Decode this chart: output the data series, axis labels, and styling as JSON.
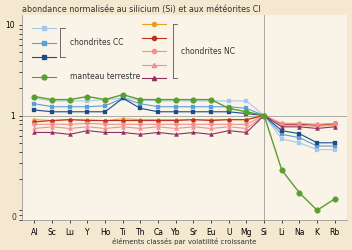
{
  "elements": [
    "Al",
    "Sc",
    "Lu",
    "Y",
    "Ho",
    "Ti",
    "Th",
    "Ca",
    "Yb",
    "Sr",
    "Eu",
    "U",
    "Mg",
    "Si",
    "Li",
    "Na",
    "K",
    "Rb"
  ],
  "background_color": "#f5e8d0",
  "plot_bg_color": "#faf3e8",
  "vertical_line_idx": 13,
  "cc_series": [
    [
      1.55,
      1.45,
      1.45,
      1.45,
      1.5,
      1.55,
      1.5,
      1.45,
      1.45,
      1.45,
      1.45,
      1.45,
      1.45,
      1.0,
      0.55,
      0.5,
      0.42,
      0.42
    ],
    [
      1.35,
      1.25,
      1.25,
      1.25,
      1.28,
      1.55,
      1.35,
      1.25,
      1.25,
      1.25,
      1.25,
      1.25,
      1.2,
      1.0,
      0.62,
      0.57,
      0.46,
      0.46
    ],
    [
      1.15,
      1.1,
      1.1,
      1.1,
      1.1,
      1.55,
      1.2,
      1.1,
      1.1,
      1.1,
      1.1,
      1.1,
      1.05,
      1.0,
      0.68,
      0.63,
      0.5,
      0.5
    ]
  ],
  "cc_colors": [
    "#a8c8e8",
    "#5b9fd8",
    "#1a4d8c"
  ],
  "nc_series": [
    [
      0.9,
      0.88,
      0.9,
      0.9,
      0.88,
      0.92,
      0.9,
      0.9,
      0.9,
      0.9,
      0.9,
      0.9,
      0.9,
      1.0,
      0.8,
      0.8,
      0.78,
      0.8
    ],
    [
      0.85,
      0.88,
      0.9,
      0.88,
      0.88,
      0.88,
      0.88,
      0.88,
      0.88,
      0.9,
      0.88,
      0.9,
      0.9,
      1.0,
      0.8,
      0.8,
      0.78,
      0.82
    ],
    [
      0.8,
      0.8,
      0.8,
      0.82,
      0.8,
      0.8,
      0.8,
      0.8,
      0.8,
      0.8,
      0.8,
      0.8,
      0.8,
      1.0,
      0.82,
      0.82,
      0.8,
      0.82
    ],
    [
      0.72,
      0.75,
      0.72,
      0.75,
      0.72,
      0.75,
      0.72,
      0.75,
      0.72,
      0.75,
      0.72,
      0.75,
      0.72,
      1.0,
      0.78,
      0.78,
      0.76,
      0.78
    ],
    [
      0.65,
      0.65,
      0.62,
      0.68,
      0.65,
      0.65,
      0.62,
      0.65,
      0.62,
      0.65,
      0.62,
      0.68,
      0.65,
      1.0,
      0.75,
      0.75,
      0.72,
      0.75
    ]
  ],
  "nc_colors": [
    "#e8a020",
    "#c03020",
    "#f09090",
    "#f09090",
    "#903060"
  ],
  "nc_markers": [
    "o",
    "o",
    "o",
    "^",
    "^"
  ],
  "manteau_series": [
    1.62,
    1.5,
    1.5,
    1.62,
    1.5,
    1.7,
    1.5,
    1.5,
    1.5,
    1.5,
    1.5,
    1.2,
    1.1,
    1.0,
    0.25,
    0.14,
    0.09,
    0.12
  ],
  "manteau_color": "#5a9e2f",
  "title": "abondance normalisée au silicium (Si) et aux météorites CI",
  "xlabel": "éléments classés par volatilité croissante",
  "legend_CC": "chondrites CC",
  "legend_NC": "chondrites NC",
  "legend_manteau": "manteau terrestre",
  "title_fontsize": 5.8,
  "tick_fontsize": 5.5,
  "legend_fontsize": 5.5
}
